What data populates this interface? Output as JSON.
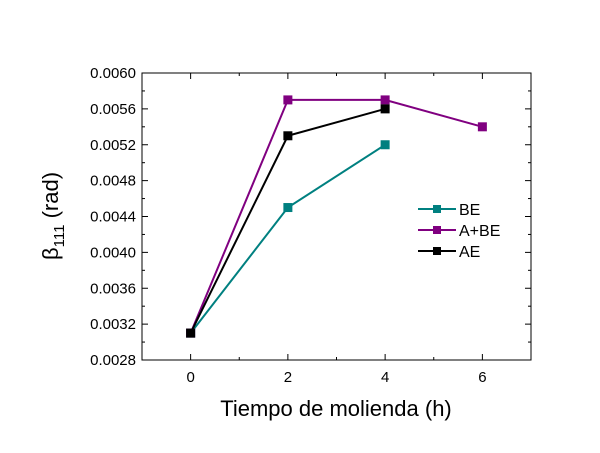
{
  "chart_data": {
    "type": "line",
    "title": "",
    "xlabel": "Tiempo de molienda (h)",
    "ylabel_main": "β",
    "ylabel_sub": "111",
    "ylabel_unit": " (rad)",
    "xlim": [
      -1,
      7
    ],
    "ylim": [
      0.0028,
      0.006
    ],
    "xticks": [
      0,
      2,
      4,
      6
    ],
    "xtick_labels": [
      "0",
      "2",
      "4",
      "6"
    ],
    "yticks": [
      0.0028,
      0.0032,
      0.0036,
      0.004,
      0.0044,
      0.0048,
      0.0052,
      0.0056,
      0.006
    ],
    "ytick_labels": [
      "0.0028",
      "0.0032",
      "0.0036",
      "0.0040",
      "0.0044",
      "0.0048",
      "0.0052",
      "0.0056",
      "0.0060"
    ],
    "grid": false,
    "legend_position": "right-middle",
    "series": [
      {
        "name": "BE",
        "color": "#008080",
        "x": [
          0,
          2,
          4
        ],
        "y": [
          0.0031,
          0.0045,
          0.0052
        ]
      },
      {
        "name": "A+BE",
        "color": "#800080",
        "x": [
          0,
          2,
          4,
          6
        ],
        "y": [
          0.0031,
          0.0057,
          0.0057,
          0.0054
        ]
      },
      {
        "name": "AE",
        "color": "#000000",
        "x": [
          0,
          2,
          4
        ],
        "y": [
          0.0031,
          0.0053,
          0.0056
        ]
      }
    ]
  }
}
